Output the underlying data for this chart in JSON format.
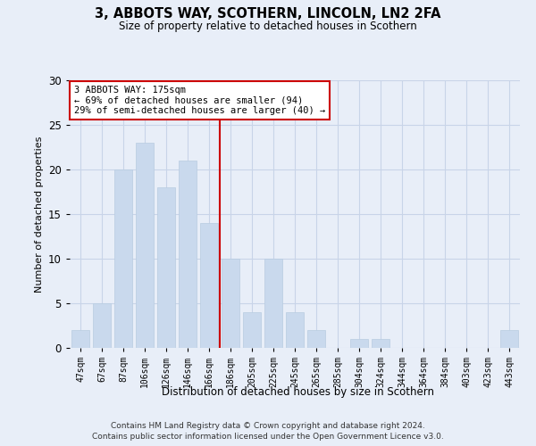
{
  "title1": "3, ABBOTS WAY, SCOTHERN, LINCOLN, LN2 2FA",
  "title2": "Size of property relative to detached houses in Scothern",
  "xlabel": "Distribution of detached houses by size in Scothern",
  "ylabel": "Number of detached properties",
  "categories": [
    "47sqm",
    "67sqm",
    "87sqm",
    "106sqm",
    "126sqm",
    "146sqm",
    "166sqm",
    "186sqm",
    "205sqm",
    "225sqm",
    "245sqm",
    "265sqm",
    "285sqm",
    "304sqm",
    "324sqm",
    "344sqm",
    "364sqm",
    "384sqm",
    "403sqm",
    "423sqm",
    "443sqm"
  ],
  "values": [
    2,
    5,
    20,
    23,
    18,
    21,
    14,
    10,
    4,
    10,
    4,
    2,
    0,
    1,
    1,
    0,
    0,
    0,
    0,
    0,
    2
  ],
  "bar_color": "#c9d9ed",
  "bar_edge_color": "#b8cce0",
  "grid_color": "#c8d4e8",
  "background_color": "#e8eef8",
  "vline_color": "#cc0000",
  "annotation_text": "3 ABBOTS WAY: 175sqm\n← 69% of detached houses are smaller (94)\n29% of semi-detached houses are larger (40) →",
  "annotation_box_color": "#ffffff",
  "annotation_box_edge": "#cc0000",
  "ylim": [
    0,
    30
  ],
  "yticks": [
    0,
    5,
    10,
    15,
    20,
    25,
    30
  ],
  "footer1": "Contains HM Land Registry data © Crown copyright and database right 2024.",
  "footer2": "Contains public sector information licensed under the Open Government Licence v3.0."
}
